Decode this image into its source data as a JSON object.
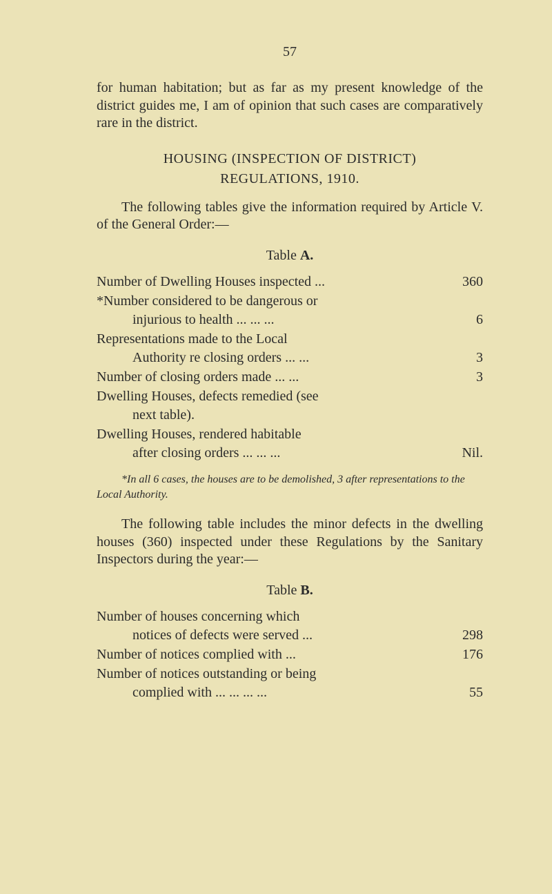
{
  "page_number": "57",
  "para1": "for human habitation; but as far as my present knowledge of the district guides me, I am of opinion that such cases are comparatively rare in the district.",
  "heading": {
    "line1": "HOUSING   (INSPECTION   OF   DISTRICT)",
    "line2": "REGULATIONS,   1910."
  },
  "para2": "The following tables give the information required by Article V. of the General Order:—",
  "tableA": {
    "label_prefix": "Table  ",
    "label_letter": "A.",
    "rows": [
      {
        "l1": "Number of Dwelling Houses inspected ...",
        "val": "360"
      },
      {
        "l1": "*Number considered to be dangerous or",
        "l2": "injurious to health     ...     ...     ...",
        "val": "6"
      },
      {
        "l1": "Representations   made   to   the   Local",
        "l2": "Authority  re  closing orders ...     ...",
        "val": "3"
      },
      {
        "l1": "Number of closing orders made ...     ...",
        "val": "3"
      },
      {
        "l1": "Dwelling  Houses,  defects  remedied  (see",
        "l2": "next table)."
      },
      {
        "l1": "Dwelling   Houses,   rendered   habitable",
        "l2": "after  closing  orders ...     ...     ...",
        "val": "Nil."
      }
    ]
  },
  "footnote": "*In all 6 cases, the houses are to be demolished, 3 after representa­tions to the Local Authority.",
  "para3": "The following table includes the minor defects in the dwelling houses (360) inspected under these Regulations by the Sanitary Inspectors during the year:—",
  "tableB": {
    "label_prefix": "Table  ",
    "label_letter": "B.",
    "rows": [
      {
        "l1": "Number   of   houses   concerning   which",
        "l2": "notices  of  defects  were  served     ...",
        "val": "298"
      },
      {
        "l1": "Number of notices complied with        ...",
        "val": "176"
      },
      {
        "l1": "Number of notices outstanding  or  being",
        "l2": "complied  with ...     ...     ...     ...",
        "val": "55"
      }
    ]
  }
}
